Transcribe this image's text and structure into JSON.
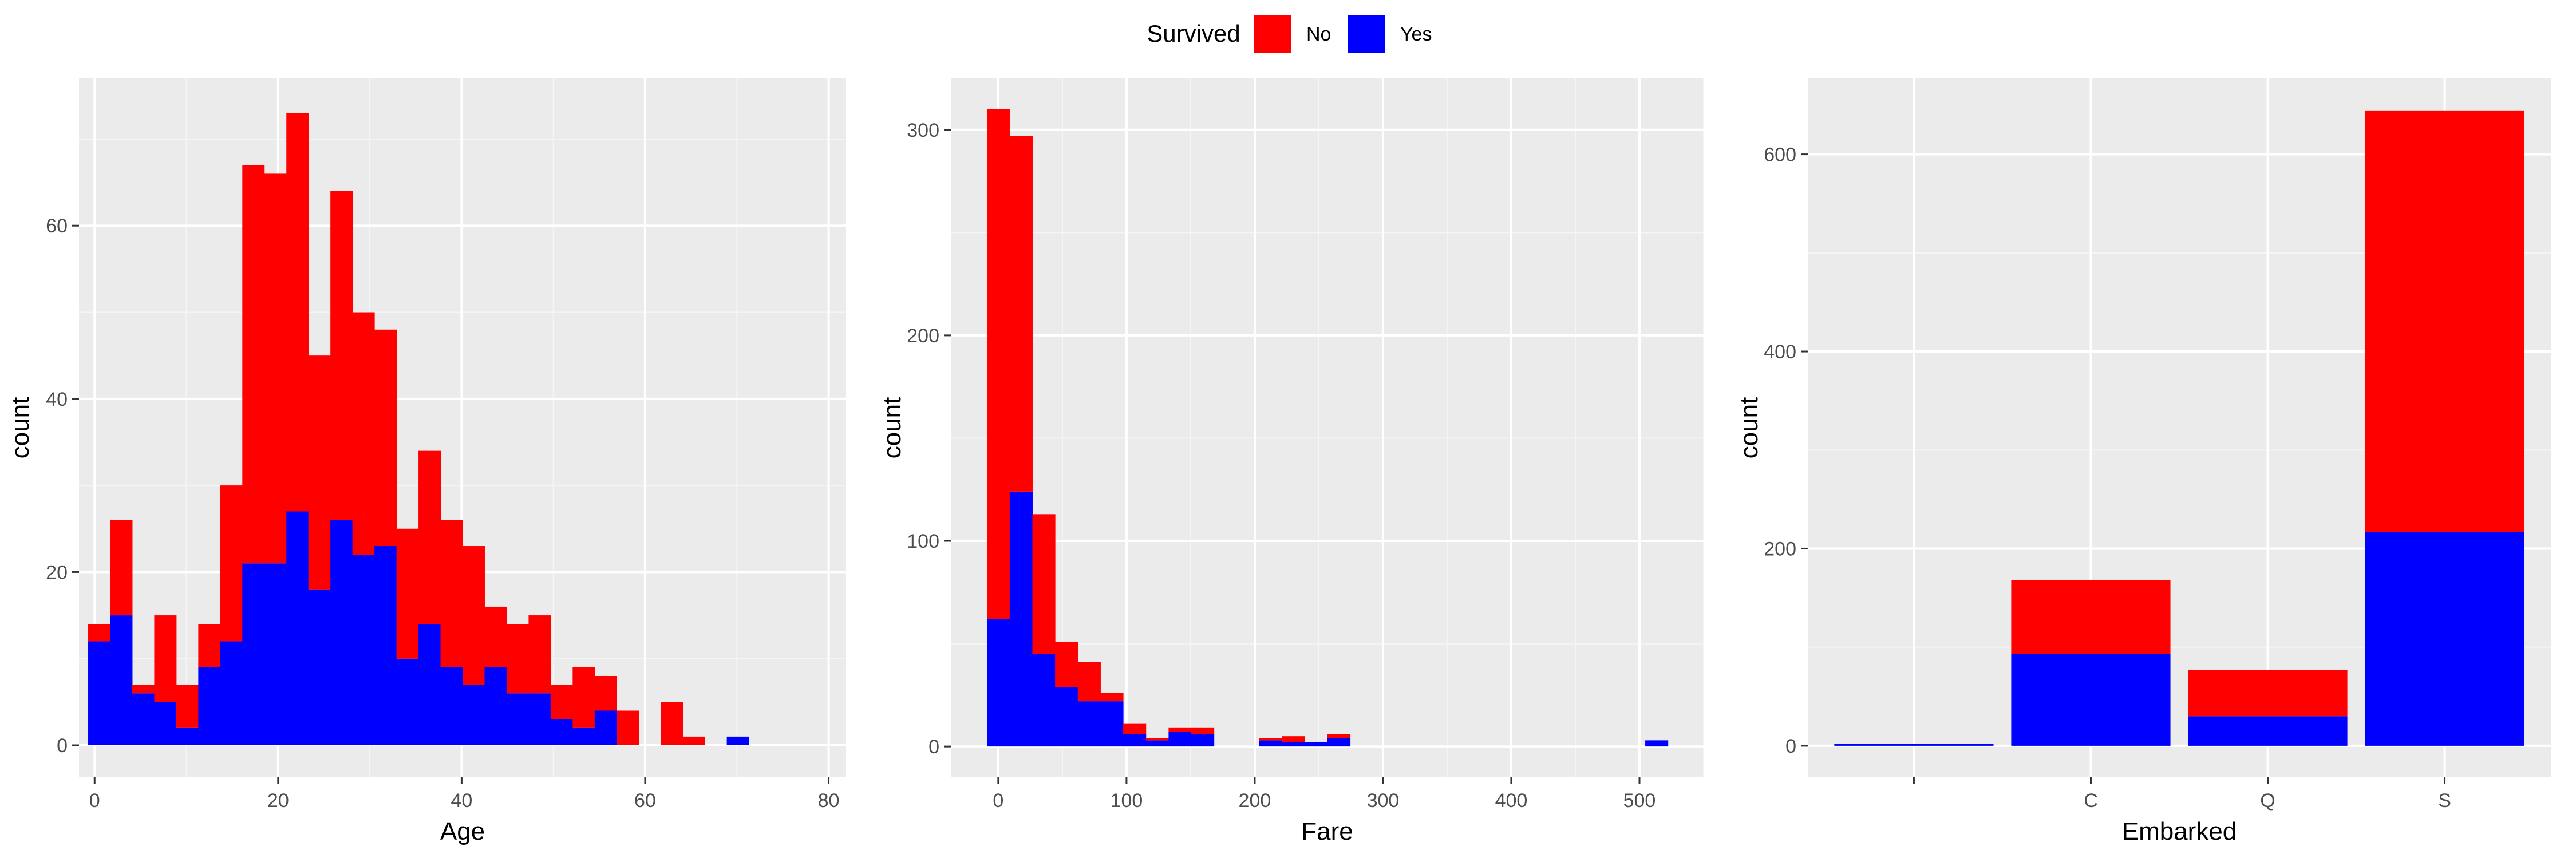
{
  "legend": {
    "title": "Survived",
    "items": [
      {
        "label": "No",
        "color": "#FF0000"
      },
      {
        "label": "Yes",
        "color": "#0000FF"
      }
    ],
    "position": "top-center"
  },
  "chart_data": [
    {
      "type": "bar",
      "variant": "stacked-histogram",
      "xlabel": "Age",
      "ylabel": "count",
      "xlim": [
        -1.7,
        81.9
      ],
      "ylim": [
        -3.7,
        77.0
      ],
      "xticks": [
        "0",
        "20",
        "40",
        "60",
        "80"
      ],
      "yticks": [
        "0",
        "20",
        "40",
        "60"
      ],
      "bin_width": 2.4,
      "bin_start": -0.7,
      "totals": [
        14,
        26,
        7,
        15,
        7,
        14,
        30,
        67,
        66,
        73,
        45,
        64,
        50,
        48,
        25,
        34,
        26,
        23,
        16,
        14,
        15,
        7,
        9,
        8,
        4,
        0,
        5,
        1,
        0,
        1
      ],
      "series": [
        {
          "name": "No",
          "values": [
            2,
            11,
            1,
            10,
            5,
            5,
            18,
            46,
            45,
            46,
            27,
            38,
            28,
            25,
            15,
            20,
            17,
            16,
            7,
            8,
            9,
            4,
            7,
            4,
            4,
            0,
            5,
            1,
            0,
            0
          ],
          "color": "#FF0000"
        },
        {
          "name": "Yes",
          "values": [
            12,
            15,
            6,
            5,
            2,
            9,
            12,
            21,
            21,
            27,
            18,
            26,
            22,
            23,
            10,
            14,
            9,
            7,
            9,
            6,
            6,
            3,
            2,
            4,
            0,
            0,
            0,
            0,
            0,
            1
          ],
          "color": "#0000FF"
        }
      ],
      "grid": true
    },
    {
      "type": "bar",
      "variant": "stacked-histogram",
      "xlabel": "Fare",
      "ylabel": "count",
      "xlim": [
        -37,
        550
      ],
      "ylim": [
        -15,
        325
      ],
      "xticks": [
        "0",
        "100",
        "200",
        "300",
        "400",
        "500"
      ],
      "yticks": [
        "0",
        "100",
        "200",
        "300"
      ],
      "bin_width": 17.7,
      "bin_start": -8.8,
      "totals": [
        310,
        297,
        113,
        51,
        41,
        26,
        11,
        4,
        9,
        9,
        0,
        0,
        4,
        5,
        2,
        6,
        0,
        0,
        0,
        0,
        0,
        0,
        0,
        0,
        0,
        0,
        0,
        0,
        0,
        3
      ],
      "series": [
        {
          "name": "No",
          "values": [
            248,
            173,
            68,
            22,
            19,
            4,
            5,
            1,
            2,
            3,
            0,
            0,
            1,
            3,
            0,
            2,
            0,
            0,
            0,
            0,
            0,
            0,
            0,
            0,
            0,
            0,
            0,
            0,
            0,
            0
          ],
          "color": "#FF0000"
        },
        {
          "name": "Yes",
          "values": [
            62,
            124,
            45,
            29,
            22,
            22,
            6,
            3,
            7,
            6,
            0,
            0,
            3,
            2,
            2,
            4,
            0,
            0,
            0,
            0,
            0,
            0,
            0,
            0,
            0,
            0,
            0,
            0,
            0,
            3
          ],
          "color": "#0000FF"
        }
      ],
      "grid": true
    },
    {
      "type": "bar",
      "variant": "stacked",
      "xlabel": "Embarked",
      "ylabel": "count",
      "ylim": [
        -32,
        677
      ],
      "yticks": [
        "0",
        "200",
        "400",
        "600"
      ],
      "categories": [
        "",
        "C",
        "Q",
        "S"
      ],
      "series": [
        {
          "name": "No",
          "values": [
            0,
            75,
            47,
            427
          ],
          "color": "#FF0000"
        },
        {
          "name": "Yes",
          "values": [
            2,
            93,
            30,
            217
          ],
          "color": "#0000FF"
        }
      ],
      "grid": true
    }
  ]
}
